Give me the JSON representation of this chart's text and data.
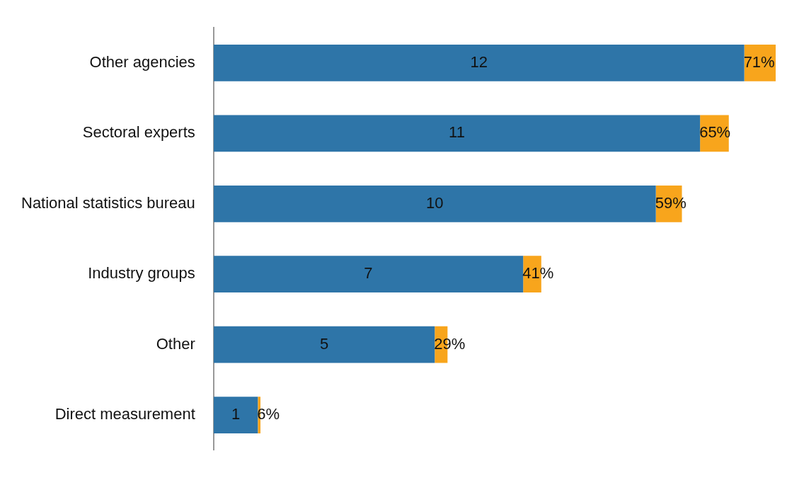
{
  "chart_data": {
    "type": "bar",
    "orientation": "horizontal",
    "stacked": true,
    "legend": false,
    "categories": [
      "Other agencies",
      "Sectoral experts",
      "National statistics bureau",
      "Industry groups",
      "Other",
      "Direct measurement"
    ],
    "series": [
      {
        "color": "#2e75a8",
        "values": [
          12,
          11,
          10,
          7,
          5,
          1
        ],
        "value_labels": [
          "12",
          "11",
          "10",
          "7",
          "5",
          "1"
        ]
      },
      {
        "color": "#f8a51c",
        "values": [
          0.71,
          0.65,
          0.59,
          0.41,
          0.29,
          0.06
        ],
        "value_labels": [
          "71%",
          "65%",
          "59%",
          "41%",
          "29%",
          "6%"
        ]
      }
    ]
  }
}
